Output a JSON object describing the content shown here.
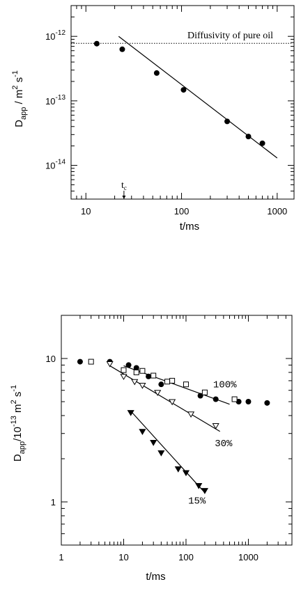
{
  "chart_data": [
    {
      "type": "scatter",
      "xlabel": "t/ms",
      "ylabel": "D_app / m^2 s^-1",
      "x_scale": "log",
      "y_scale": "log",
      "xlim": [
        7,
        1500
      ],
      "ylim": [
        3e-15,
        3e-12
      ],
      "x_ticks": [
        10,
        100,
        1000
      ],
      "x_tick_labels": [
        "10",
        "100",
        "1000"
      ],
      "y_ticks": [
        1e-14,
        1e-13,
        1e-12
      ],
      "y_tick_labels": [
        "10^-14",
        "10^-13",
        "10^-12"
      ],
      "reference_line": {
        "label": "Diffusivity of pure oil",
        "y": 7.8e-13
      },
      "marker_annotation": {
        "label": "t_c",
        "x": 25
      },
      "series": [
        {
          "marker": "filled-circle",
          "x": [
            13,
            24,
            55,
            105,
            300,
            500,
            700
          ],
          "y": [
            7.7e-13,
            6.3e-13,
            2.7e-13,
            1.48e-13,
            4.8e-14,
            2.8e-14,
            2.2e-14
          ]
        }
      ],
      "fit_lines": [
        {
          "x": [
            22,
            1000
          ],
          "y": [
            1e-12,
            1.3e-14
          ]
        }
      ]
    },
    {
      "type": "scatter",
      "xlabel": "t/ms",
      "ylabel": "D_app/10^-13 m^2 s^-1",
      "x_scale": "log",
      "y_scale": "log",
      "xlim": [
        1,
        5000
      ],
      "ylim": [
        0.5,
        20
      ],
      "x_ticks": [
        1,
        10,
        100,
        1000
      ],
      "x_tick_labels": [
        "1",
        "10",
        "100",
        "1000"
      ],
      "y_ticks": [
        1,
        10
      ],
      "y_tick_labels": [
        "1",
        "10"
      ],
      "series": [
        {
          "name": "100%",
          "marker": "filled-circle",
          "x": [
            2,
            6,
            12,
            16,
            25,
            40,
            170,
            300,
            700,
            1000,
            2000
          ],
          "y": [
            9.5,
            9.5,
            9.0,
            8.6,
            7.5,
            6.6,
            5.5,
            5.2,
            5.0,
            5.0,
            4.9
          ]
        },
        {
          "name": "",
          "marker": "open-square",
          "x": [
            3,
            10,
            16,
            20,
            30,
            50,
            60,
            100,
            200,
            600
          ],
          "y": [
            9.5,
            8.3,
            8.0,
            8.2,
            7.6,
            6.9,
            7.0,
            6.6,
            5.8,
            5.2
          ]
        },
        {
          "name": "30%",
          "marker": "open-triangle-down",
          "x": [
            6,
            10,
            15,
            20,
            35,
            60,
            120,
            300
          ],
          "y": [
            9.2,
            7.5,
            6.9,
            6.5,
            5.8,
            5.0,
            4.1,
            3.4
          ]
        },
        {
          "name": "15%",
          "marker": "filled-triangle-down",
          "x": [
            13,
            20,
            30,
            40,
            75,
            100,
            160,
            200
          ],
          "y": [
            4.2,
            3.1,
            2.6,
            2.2,
            1.7,
            1.6,
            1.3,
            1.2
          ]
        }
      ],
      "fit_lines": [
        {
          "x": [
            10,
            500
          ],
          "y": [
            8.9,
            4.8
          ]
        },
        {
          "x": [
            6,
            350
          ],
          "y": [
            8.9,
            3.1
          ]
        },
        {
          "x": [
            13,
            200
          ],
          "y": [
            4.3,
            1.16
          ]
        }
      ],
      "curve_labels": [
        {
          "text": "100%",
          "x": 420,
          "y": 6.3
        },
        {
          "text": "30%",
          "x": 400,
          "y": 2.45
        },
        {
          "text": "15%",
          "x": 150,
          "y": 0.97
        }
      ]
    }
  ]
}
